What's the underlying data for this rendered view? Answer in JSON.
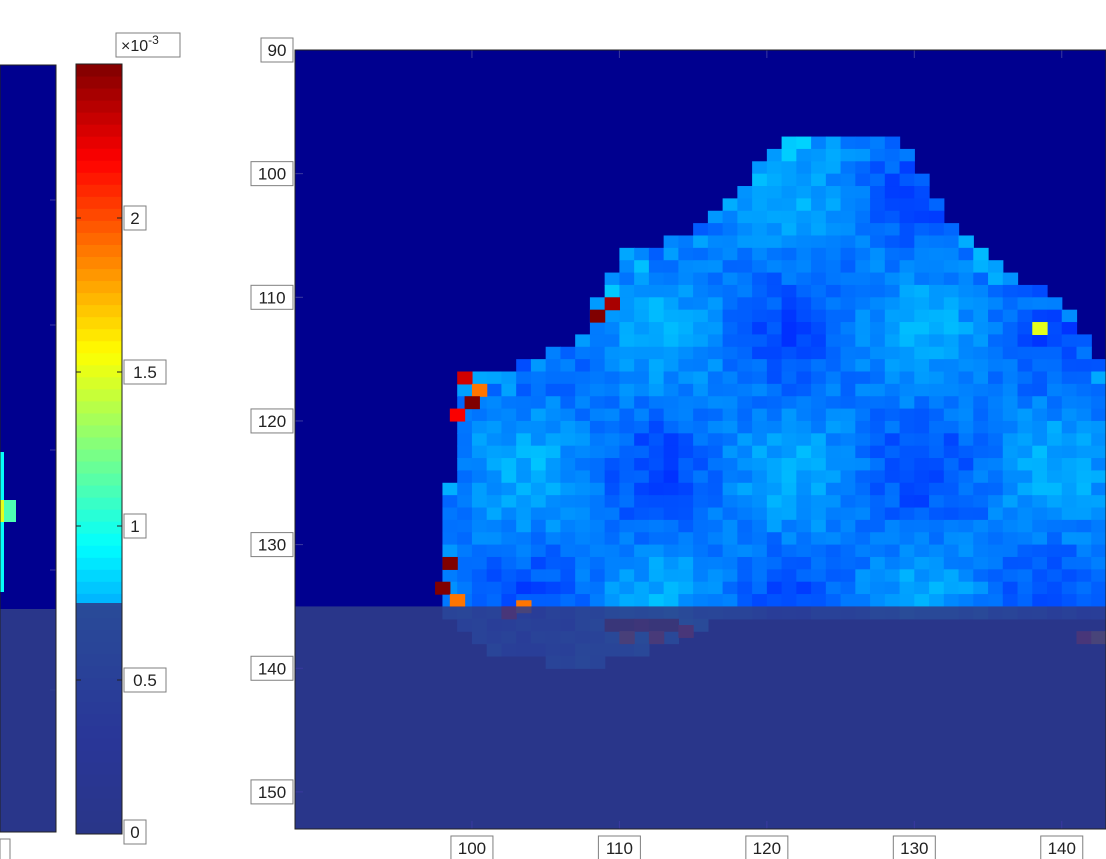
{
  "chart_data": [
    {
      "name": "left-map-partial",
      "type": "heatmap",
      "title": "",
      "xlabel": "",
      "ylabel": "",
      "x_tick_labels": [],
      "y_tick_labels": [],
      "clim": [
        0,
        0.0025
      ],
      "grid": false,
      "colormap": "jet",
      "overlay": {
        "description_value_threshold": 0.00075,
        "shaded": true
      }
    },
    {
      "name": "colorbar",
      "type": "heatmap",
      "exponent_base": "×10",
      "exponent_power": "-3",
      "range": [
        0,
        2.5
      ],
      "ticks": [
        {
          "value": 0,
          "label": "0"
        },
        {
          "value": 0.5,
          "label": "0.5"
        },
        {
          "value": 1,
          "label": "1"
        },
        {
          "value": 1.5,
          "label": "1.5"
        },
        {
          "value": 2,
          "label": "2"
        }
      ],
      "overlay_below_value": 0.75,
      "colormap": "jet"
    },
    {
      "name": "main-map",
      "type": "heatmap",
      "title": "",
      "xlabel": "",
      "ylabel": "",
      "xlim": [
        88,
        143
      ],
      "ylim": [
        90,
        153
      ],
      "y_reversed": true,
      "x_ticks": [
        {
          "value": 100,
          "label": "100"
        },
        {
          "value": 110,
          "label": "110"
        },
        {
          "value": 120,
          "label": "120"
        },
        {
          "value": 130,
          "label": "130"
        },
        {
          "value": 140,
          "label": "140"
        }
      ],
      "y_ticks": [
        {
          "value": 90,
          "label": "90"
        },
        {
          "value": 100,
          "label": "100"
        },
        {
          "value": 110,
          "label": "110"
        },
        {
          "value": 120,
          "label": "120"
        },
        {
          "value": 130,
          "label": "130"
        },
        {
          "value": 140,
          "label": "140"
        },
        {
          "value": 150,
          "label": "150"
        }
      ],
      "clim": [
        0,
        0.0025
      ],
      "background_value": 0,
      "overlay_from_y": 135,
      "region_profile": [
        [
          98,
          132,
          135.5
        ],
        [
          99,
          118,
          135.5
        ],
        [
          100,
          116,
          137
        ],
        [
          101,
          116,
          138
        ],
        [
          103,
          116,
          139
        ],
        [
          105,
          115,
          139
        ],
        [
          107,
          114,
          140
        ],
        [
          108,
          112,
          140
        ],
        [
          109,
          109.5,
          139
        ],
        [
          110,
          107,
          138.5
        ],
        [
          112,
          106.5,
          138
        ],
        [
          114,
          105.5,
          137
        ],
        [
          116,
          104,
          136
        ],
        [
          118,
          102,
          136
        ],
        [
          120,
          98.5,
          136
        ],
        [
          122,
          97.5,
          136
        ],
        [
          125,
          97,
          136
        ],
        [
          128,
          97,
          136
        ],
        [
          130,
          99,
          136
        ],
        [
          132,
          104,
          136
        ],
        [
          134,
          106,
          136
        ],
        [
          136,
          108,
          136
        ],
        [
          138,
          109.5,
          136
        ],
        [
          140,
          111,
          136
        ],
        [
          142,
          114,
          136
        ],
        [
          143,
          116,
          136
        ]
      ],
      "hotspots": [
        {
          "x": 99,
          "y": 116,
          "value": 0.0023
        },
        {
          "x": 100,
          "y": 117,
          "value": 0.0019
        },
        {
          "x": 99.5,
          "y": 118,
          "value": 0.0025
        },
        {
          "x": 98.5,
          "y": 119,
          "value": 0.0022
        },
        {
          "x": 98,
          "y": 131,
          "value": 0.0025
        },
        {
          "x": 97.5,
          "y": 133,
          "value": 0.0025
        },
        {
          "x": 98.5,
          "y": 134,
          "value": 0.0019
        },
        {
          "x": 102,
          "y": 135,
          "value": 0.0022
        },
        {
          "x": 103,
          "y": 134.5,
          "value": 0.0019
        },
        {
          "x": 108,
          "y": 111,
          "value": 0.0025
        },
        {
          "x": 109,
          "y": 110,
          "value": 0.0024
        },
        {
          "x": 109,
          "y": 136,
          "value": 0.0025
        },
        {
          "x": 110,
          "y": 136,
          "value": 0.0025
        },
        {
          "x": 111,
          "y": 136,
          "value": 0.0024
        },
        {
          "x": 112,
          "y": 136,
          "value": 0.0025
        },
        {
          "x": 113,
          "y": 136,
          "value": 0.0025
        },
        {
          "x": 114,
          "y": 136.5,
          "value": 0.0022
        },
        {
          "x": 110,
          "y": 137,
          "value": 0.002
        },
        {
          "x": 112,
          "y": 137,
          "value": 0.0021
        },
        {
          "x": 141,
          "y": 137,
          "value": 0.0022
        },
        {
          "x": 142,
          "y": 137,
          "value": 0.0019
        },
        {
          "x": 138,
          "y": 112,
          "value": 0.0015
        }
      ]
    }
  ]
}
